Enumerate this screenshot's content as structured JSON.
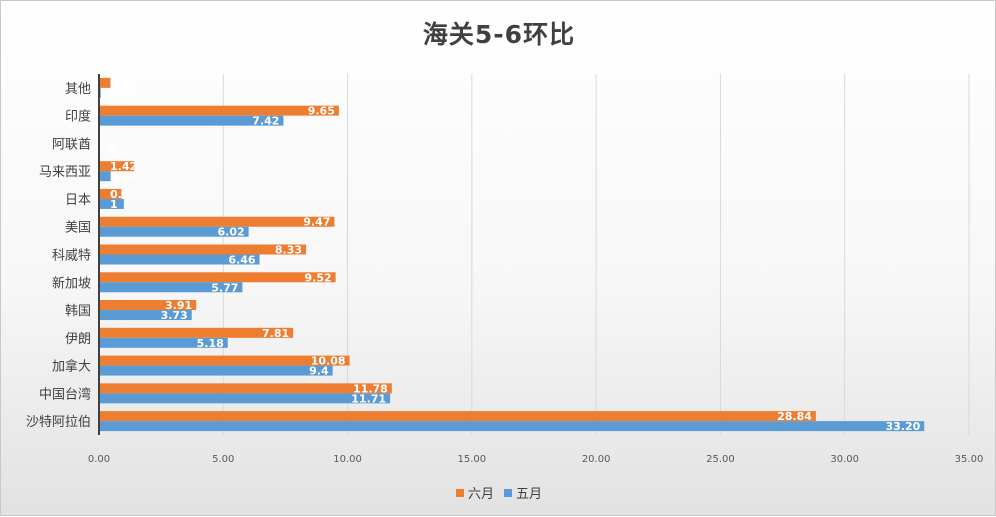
{
  "chart_data": {
    "type": "bar",
    "orientation": "horizontal",
    "title": "海关5-6环比",
    "categories": [
      "沙特阿拉伯",
      "中国台湾",
      "加拿大",
      "伊朗",
      "韩国",
      "新加坡",
      "科威特",
      "美国",
      "日本",
      "马来西亚",
      "阿联酋",
      "印度",
      "其他"
    ],
    "series": [
      {
        "name": "五月",
        "color": "#5b9bd5",
        "values": [
          33.2,
          11.71,
          9.4,
          5.18,
          3.73,
          5.77,
          6.46,
          6.02,
          1,
          0.47,
          0,
          7.42,
          0.07
        ],
        "labels": [
          "33.20",
          "11.71",
          "9.4",
          "5.18",
          "3.73",
          "5.77",
          "6.46",
          "6.02",
          "1",
          "0.47",
          "0",
          "7.42",
          "0.07"
        ]
      },
      {
        "name": "六月",
        "color": "#ed7d31",
        "values": [
          28.84,
          11.78,
          10.08,
          7.81,
          3.91,
          9.52,
          8.33,
          9.47,
          0.9,
          1.42,
          null,
          9.65,
          0.46
        ],
        "labels": [
          "28.84",
          "11.78",
          "10.08",
          "7.81",
          "3.91",
          "9.52",
          "8.33",
          "9.47",
          "0.9",
          "1.42",
          "",
          "9.65",
          "0.46"
        ]
      }
    ],
    "xlim": [
      0,
      35
    ],
    "xticks": [
      "0.00",
      "5.00",
      "10.00",
      "15.00",
      "20.00",
      "25.00",
      "30.00",
      "35.00"
    ],
    "grid": "vertical",
    "legend": {
      "position": "bottom",
      "items": [
        {
          "name": "六月",
          "color": "#ed7d31"
        },
        {
          "name": "五月",
          "color": "#5b9bd5"
        }
      ]
    }
  }
}
